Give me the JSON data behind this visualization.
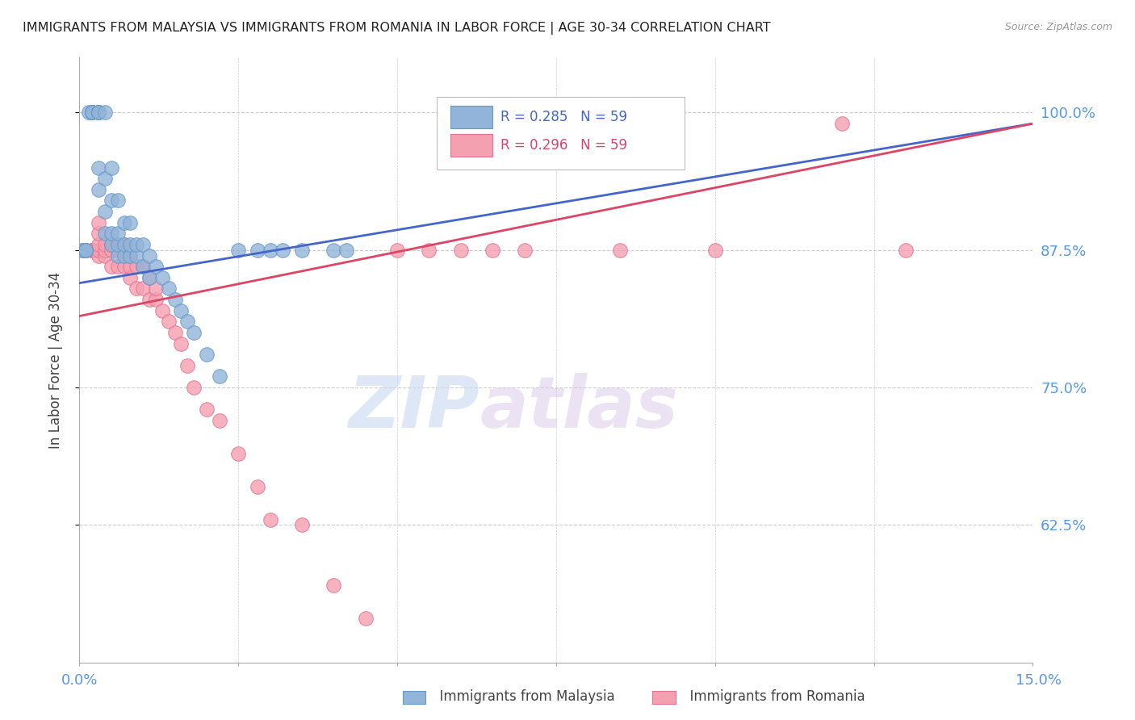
{
  "title": "IMMIGRANTS FROM MALAYSIA VS IMMIGRANTS FROM ROMANIA IN LABOR FORCE | AGE 30-34 CORRELATION CHART",
  "source": "Source: ZipAtlas.com",
  "ylabel": "In Labor Force | Age 30-34",
  "xmin": 0.0,
  "xmax": 0.15,
  "ymin": 0.5,
  "ymax": 1.05,
  "malaysia_color": "#92B4D8",
  "malaysia_edge": "#6699CC",
  "romania_color": "#F4A0B0",
  "romania_edge": "#E87090",
  "legend_malaysia": "Immigrants from Malaysia",
  "legend_romania": "Immigrants from Romania",
  "r_malaysia": 0.285,
  "n_malaysia": 59,
  "r_romania": 0.296,
  "n_romania": 59,
  "line_malaysia_color": "#4466CC",
  "line_romania_color": "#DD4466",
  "watermark_zip": "ZIP",
  "watermark_atlas": "atlas",
  "malaysia_x": [
    0.0005,
    0.001,
    0.001,
    0.001,
    0.001,
    0.0015,
    0.002,
    0.002,
    0.002,
    0.002,
    0.002,
    0.002,
    0.003,
    0.003,
    0.003,
    0.003,
    0.003,
    0.003,
    0.003,
    0.004,
    0.004,
    0.004,
    0.004,
    0.005,
    0.005,
    0.005,
    0.005,
    0.006,
    0.006,
    0.006,
    0.006,
    0.007,
    0.007,
    0.007,
    0.008,
    0.008,
    0.008,
    0.009,
    0.009,
    0.01,
    0.01,
    0.011,
    0.011,
    0.012,
    0.013,
    0.014,
    0.015,
    0.016,
    0.017,
    0.018,
    0.02,
    0.022,
    0.025,
    0.028,
    0.03,
    0.032,
    0.035,
    0.04,
    0.042
  ],
  "malaysia_y": [
    0.875,
    0.875,
    0.875,
    0.875,
    0.875,
    1.0,
    1.0,
    1.0,
    1.0,
    1.0,
    1.0,
    1.0,
    0.93,
    0.95,
    1.0,
    1.0,
    1.0,
    1.0,
    1.0,
    0.89,
    0.91,
    0.94,
    1.0,
    0.88,
    0.89,
    0.92,
    0.95,
    0.87,
    0.88,
    0.89,
    0.92,
    0.87,
    0.88,
    0.9,
    0.87,
    0.88,
    0.9,
    0.87,
    0.88,
    0.86,
    0.88,
    0.85,
    0.87,
    0.86,
    0.85,
    0.84,
    0.83,
    0.82,
    0.81,
    0.8,
    0.78,
    0.76,
    0.875,
    0.875,
    0.875,
    0.875,
    0.875,
    0.875,
    0.875
  ],
  "romania_x": [
    0.0005,
    0.001,
    0.001,
    0.001,
    0.002,
    0.002,
    0.002,
    0.002,
    0.003,
    0.003,
    0.003,
    0.003,
    0.003,
    0.004,
    0.004,
    0.004,
    0.005,
    0.005,
    0.005,
    0.006,
    0.006,
    0.006,
    0.007,
    0.007,
    0.007,
    0.008,
    0.008,
    0.008,
    0.009,
    0.009,
    0.01,
    0.01,
    0.011,
    0.011,
    0.012,
    0.012,
    0.013,
    0.014,
    0.015,
    0.016,
    0.017,
    0.018,
    0.02,
    0.022,
    0.025,
    0.028,
    0.03,
    0.035,
    0.04,
    0.045,
    0.05,
    0.055,
    0.06,
    0.065,
    0.07,
    0.085,
    0.1,
    0.12,
    0.13
  ],
  "romania_y": [
    0.875,
    0.875,
    0.875,
    0.875,
    0.875,
    0.875,
    0.875,
    0.875,
    0.87,
    0.875,
    0.88,
    0.89,
    0.9,
    0.87,
    0.875,
    0.88,
    0.86,
    0.875,
    0.88,
    0.86,
    0.875,
    0.88,
    0.86,
    0.87,
    0.88,
    0.85,
    0.86,
    0.87,
    0.84,
    0.86,
    0.84,
    0.86,
    0.83,
    0.85,
    0.83,
    0.84,
    0.82,
    0.81,
    0.8,
    0.79,
    0.77,
    0.75,
    0.73,
    0.72,
    0.69,
    0.66,
    0.63,
    0.625,
    0.57,
    0.54,
    0.875,
    0.875,
    0.875,
    0.875,
    0.875,
    0.875,
    0.875,
    0.99,
    0.875
  ],
  "line_malaysia_x0": 0.0,
  "line_malaysia_y0": 0.845,
  "line_malaysia_x1": 0.15,
  "line_malaysia_y1": 0.99,
  "line_romania_x0": 0.0,
  "line_romania_y0": 0.815,
  "line_romania_x1": 0.15,
  "line_romania_y1": 0.99
}
